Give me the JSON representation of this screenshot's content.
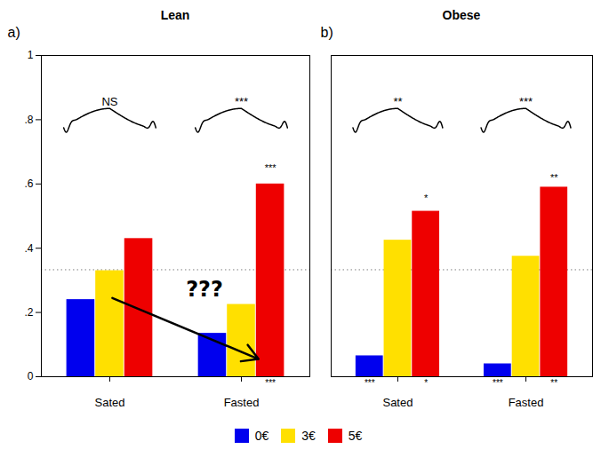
{
  "chart_data": [
    {
      "type": "bar",
      "title": "Lean",
      "categories": [
        "Sated",
        "Fasted"
      ],
      "series": [
        {
          "name": "0€",
          "color": "#0000EE",
          "values": [
            0.24,
            0.135
          ]
        },
        {
          "name": "3€",
          "color": "#FFE000",
          "values": [
            0.33,
            0.225
          ]
        },
        {
          "name": "5€",
          "color": "#EE0000",
          "values": [
            0.43,
            0.6
          ],
          "stars": [
            null,
            "***"
          ]
        }
      ],
      "ylim": [
        0,
        1.0
      ],
      "yticks": [
        0,
        {
          "value": 0.2,
          "label": ".2"
        },
        {
          "value": 0.4,
          "label": ".4"
        },
        {
          "value": 0.6,
          "label": ".6"
        },
        {
          "value": 0.8,
          "label": ".8"
        },
        1
      ],
      "grid": false,
      "legend": "bottom",
      "reference_line": {
        "y": 0.333,
        "line_style": "dotted"
      },
      "annotations": [
        {
          "text": "a)"
        },
        {
          "text": "NS",
          "x": "Sated",
          "brace": [
            0.775,
            0.835
          ]
        },
        {
          "text": "***",
          "x": "Fasted",
          "brace": [
            0.775,
            0.835
          ]
        },
        {
          "text": "***",
          "x": "Fasted",
          "series": "5€",
          "y": 0.64
        },
        {
          "arrow": {
            "x": [
              0.02,
              1.13
            ],
            "y": [
              0.245,
              0.055
            ]
          }
        },
        {
          "text": "???",
          "x": 0.72,
          "y": 0.27
        }
      ]
    },
    {
      "type": "bar",
      "title": "Obese",
      "categories": [
        "Sated",
        "Fasted"
      ],
      "series": [
        {
          "name": "0€",
          "color": "#0000EE",
          "values": [
            0.065,
            0.04
          ],
          "stars": [
            "***",
            "***"
          ]
        },
        {
          "name": "3€",
          "color": "#FFE000",
          "values": [
            0.425,
            0.375
          ]
        },
        {
          "name": "5€",
          "color": "#EE0000",
          "values": [
            0.515,
            0.59
          ],
          "stars": [
            "*",
            "**"
          ]
        }
      ],
      "ylim": [
        0,
        1.0
      ],
      "yticks": [
        0,
        {
          "value": 0.2,
          "label": ".2"
        },
        {
          "value": 0.4,
          "label": ".4"
        },
        {
          "value": 0.6,
          "label": ".6"
        },
        {
          "value": 0.8,
          "label": ".8"
        },
        1
      ],
      "grid": false,
      "tick_labels": "x",
      "reference_line": {
        "y": 0.333,
        "line_style": "dotted"
      },
      "annotations": [
        {
          "text": "b)"
        },
        {
          "text": "**",
          "x": "Sated",
          "brace": [
            0.775,
            0.835
          ]
        },
        {
          "text": "***",
          "x": "Fasted",
          "brace": [
            0.775,
            0.835
          ]
        },
        {
          "text": "*",
          "x": "Sated",
          "series": "5€",
          "y": 0.545
        },
        {
          "text": "**",
          "x": "Fasted",
          "series": "5€",
          "y": 0.61
        }
      ]
    }
  ]
}
